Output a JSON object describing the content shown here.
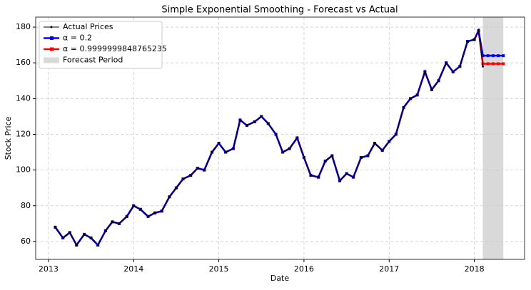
{
  "chart_data": {
    "type": "line",
    "title": "Simple Exponential Smoothing - Forecast vs Actual",
    "xlabel": "Date",
    "ylabel": "Stock Price",
    "xlim": [
      2012.85,
      2018.59
    ],
    "ylim": [
      50,
      185.6
    ],
    "xticks": [
      2013,
      2014,
      2015,
      2016,
      2017,
      2018
    ],
    "yticks": [
      60,
      80,
      100,
      120,
      140,
      160,
      180
    ],
    "grid": true,
    "legend": "upper left",
    "span": {
      "name": "Forecast Period",
      "color": "#d9d9d9",
      "x": [
        2018.1,
        2018.34
      ]
    },
    "series": [
      {
        "name": "Actual Prices",
        "color": "#000000",
        "x": [
          2013.08,
          2013.17,
          2013.25,
          2013.33,
          2013.42,
          2013.5,
          2013.58,
          2013.67,
          2013.75,
          2013.83,
          2013.92,
          2014.0,
          2014.08,
          2014.17,
          2014.25,
          2014.33,
          2014.42,
          2014.5,
          2014.58,
          2014.67,
          2014.75,
          2014.83,
          2014.92,
          2015.0,
          2015.08,
          2015.17,
          2015.25,
          2015.33,
          2015.42,
          2015.5,
          2015.58,
          2015.67,
          2015.75,
          2015.83,
          2015.92,
          2016.0,
          2016.08,
          2016.17,
          2016.25,
          2016.33,
          2016.42,
          2016.5,
          2016.58,
          2016.67,
          2016.75,
          2016.83,
          2016.92,
          2017.0,
          2017.08,
          2017.17,
          2017.25,
          2017.33,
          2017.42,
          2017.5,
          2017.58,
          2017.67,
          2017.75,
          2017.83,
          2017.92,
          2018.0,
          2018.05,
          2018.1
        ],
        "values": [
          68,
          62,
          65,
          58,
          64,
          62,
          58,
          66,
          71,
          70,
          74,
          80,
          78,
          74,
          76,
          77,
          85,
          90,
          95,
          97,
          101,
          100,
          110,
          115,
          110,
          112,
          128,
          125,
          127,
          130,
          126,
          120,
          110,
          112,
          118,
          107,
          97,
          96,
          105,
          108,
          94,
          98,
          96,
          107,
          108,
          115,
          111,
          116,
          120,
          135,
          140,
          142,
          155,
          145,
          150,
          160,
          155,
          158,
          172,
          173,
          178,
          158
        ]
      },
      {
        "name": "α = 0.2",
        "color": "#0000ff",
        "x": [
          2013.08,
          2013.17,
          2013.25,
          2013.33,
          2013.42,
          2013.5,
          2013.58,
          2013.67,
          2013.75,
          2013.83,
          2013.92,
          2014.0,
          2014.08,
          2014.17,
          2014.25,
          2014.33,
          2014.42,
          2014.5,
          2014.58,
          2014.67,
          2014.75,
          2014.83,
          2014.92,
          2015.0,
          2015.08,
          2015.17,
          2015.25,
          2015.33,
          2015.42,
          2015.5,
          2015.58,
          2015.67,
          2015.75,
          2015.83,
          2015.92,
          2016.0,
          2016.08,
          2016.17,
          2016.25,
          2016.33,
          2016.42,
          2016.5,
          2016.58,
          2016.67,
          2016.75,
          2016.83,
          2016.92,
          2017.0,
          2017.08,
          2017.17,
          2017.25,
          2017.33,
          2017.42,
          2017.5,
          2017.58,
          2017.67,
          2017.75,
          2017.83,
          2017.92,
          2018.0,
          2018.05,
          2018.1,
          2018.16,
          2018.22,
          2018.28,
          2018.34
        ],
        "values": [
          68,
          62,
          65,
          58,
          64,
          62,
          58,
          66,
          71,
          70,
          74,
          80,
          78,
          74,
          76,
          77,
          85,
          90,
          95,
          97,
          101,
          100,
          110,
          115,
          110,
          112,
          128,
          125,
          127,
          130,
          126,
          120,
          110,
          112,
          118,
          107,
          97,
          96,
          105,
          108,
          94,
          98,
          96,
          107,
          108,
          115,
          111,
          116,
          120,
          135,
          140,
          142,
          155,
          145,
          150,
          160,
          155,
          158,
          172,
          173,
          178,
          164,
          164,
          164,
          164,
          164
        ]
      },
      {
        "name": "α = 0.9999999848765235",
        "color": "#ff0000",
        "x": [
          2013.08,
          2013.17,
          2013.25,
          2013.33,
          2013.42,
          2013.5,
          2013.58,
          2013.67,
          2013.75,
          2013.83,
          2013.92,
          2014.0,
          2014.08,
          2014.17,
          2014.25,
          2014.33,
          2014.42,
          2014.5,
          2014.58,
          2014.67,
          2014.75,
          2014.83,
          2014.92,
          2015.0,
          2015.08,
          2015.17,
          2015.25,
          2015.33,
          2015.42,
          2015.5,
          2015.58,
          2015.67,
          2015.75,
          2015.83,
          2015.92,
          2016.0,
          2016.08,
          2016.17,
          2016.25,
          2016.33,
          2016.42,
          2016.5,
          2016.58,
          2016.67,
          2016.75,
          2016.83,
          2016.92,
          2017.0,
          2017.08,
          2017.17,
          2017.25,
          2017.33,
          2017.42,
          2017.5,
          2017.58,
          2017.67,
          2017.75,
          2017.83,
          2017.92,
          2018.0,
          2018.05,
          2018.1,
          2018.16,
          2018.22,
          2018.28,
          2018.34
        ],
        "values": [
          68,
          62,
          65,
          58,
          64,
          62,
          58,
          66,
          71,
          70,
          74,
          80,
          78,
          74,
          76,
          77,
          85,
          90,
          95,
          97,
          101,
          100,
          110,
          115,
          110,
          112,
          128,
          125,
          127,
          130,
          126,
          120,
          110,
          112,
          118,
          107,
          97,
          96,
          105,
          108,
          94,
          98,
          96,
          107,
          108,
          115,
          111,
          116,
          120,
          135,
          140,
          142,
          155,
          145,
          150,
          160,
          155,
          158,
          172,
          173,
          178,
          159.5,
          159.5,
          159.5,
          159.5,
          159.5
        ]
      }
    ]
  }
}
